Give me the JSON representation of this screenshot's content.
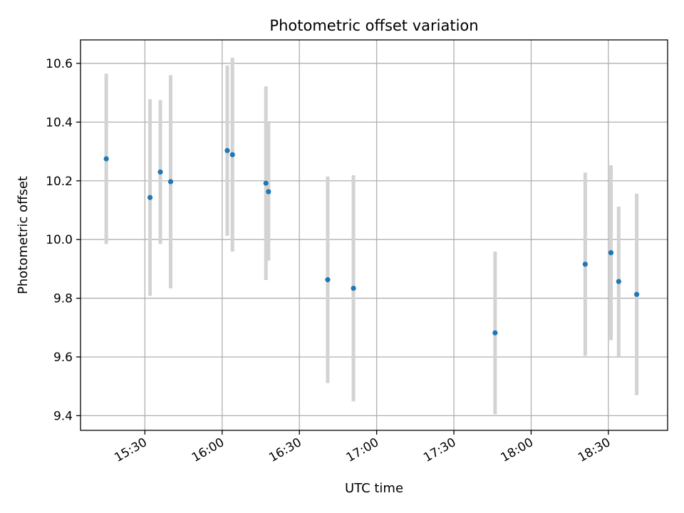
{
  "chart_data": {
    "type": "scatter",
    "title": "Photometric offset variation",
    "xlabel": "UTC time",
    "ylabel": "Photometric offset",
    "grid": true,
    "x_axis": {
      "type": "time",
      "range": [
        "15:05",
        "18:53"
      ],
      "ticks": [
        "15:30",
        "16:00",
        "16:30",
        "17:00",
        "17:30",
        "18:00",
        "18:30"
      ]
    },
    "y_axis": {
      "range": [
        9.35,
        10.68
      ],
      "ticks": [
        "9.4",
        "9.6",
        "9.8",
        "10.0",
        "10.2",
        "10.4",
        "10.6"
      ]
    },
    "series": [
      {
        "point_color": "#1f77b4",
        "errorbar_color": "#d3d3d3",
        "points": [
          {
            "x": "15:15",
            "y": 10.275,
            "err": 0.29
          },
          {
            "x": "15:32",
            "y": 10.143,
            "err": 0.335
          },
          {
            "x": "15:36",
            "y": 10.23,
            "err": 0.245
          },
          {
            "x": "15:40",
            "y": 10.197,
            "err": 0.363
          },
          {
            "x": "16:02",
            "y": 10.303,
            "err": 0.29
          },
          {
            "x": "16:04",
            "y": 10.289,
            "err": 0.33
          },
          {
            "x": "16:17",
            "y": 10.192,
            "err": 0.33
          },
          {
            "x": "16:18",
            "y": 10.163,
            "err": 0.235
          },
          {
            "x": "16:41",
            "y": 9.863,
            "err": 0.352
          },
          {
            "x": "16:51",
            "y": 9.834,
            "err": 0.385
          },
          {
            "x": "17:46",
            "y": 9.682,
            "err": 0.277
          },
          {
            "x": "18:21",
            "y": 9.916,
            "err": 0.312
          },
          {
            "x": "18:31",
            "y": 9.955,
            "err": 0.298
          },
          {
            "x": "18:34",
            "y": 9.857,
            "err": 0.255
          },
          {
            "x": "18:41",
            "y": 9.813,
            "err": 0.343
          }
        ]
      }
    ]
  }
}
